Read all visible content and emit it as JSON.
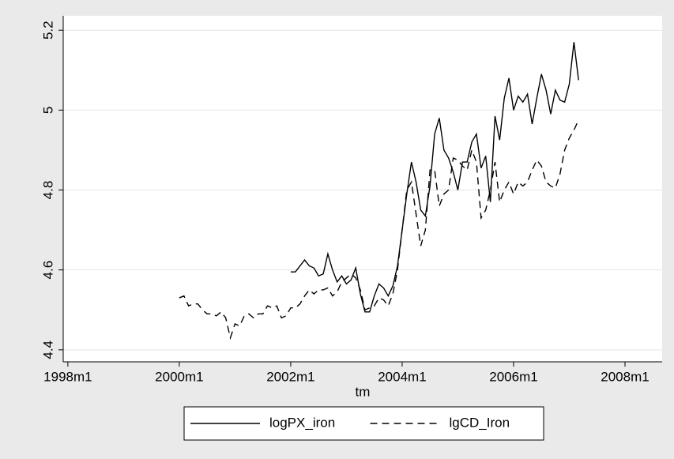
{
  "chart_data": {
    "type": "line",
    "x_label": "tm",
    "x": [
      "2000m1",
      "2000m2",
      "2000m3",
      "2000m4",
      "2000m5",
      "2000m6",
      "2000m7",
      "2000m8",
      "2000m9",
      "2000m10",
      "2000m11",
      "2000m12",
      "2001m1",
      "2001m2",
      "2001m3",
      "2001m4",
      "2001m5",
      "2001m6",
      "2001m7",
      "2001m8",
      "2001m9",
      "2001m10",
      "2001m11",
      "2001m12",
      "2002m1",
      "2002m2",
      "2002m3",
      "2002m4",
      "2002m5",
      "2002m6",
      "2002m7",
      "2002m8",
      "2002m9",
      "2002m10",
      "2002m11",
      "2002m12",
      "2003m1",
      "2003m2",
      "2003m3",
      "2003m4",
      "2003m5",
      "2003m6",
      "2003m7",
      "2003m8",
      "2003m9",
      "2003m10",
      "2003m11",
      "2003m12",
      "2004m1",
      "2004m2",
      "2004m3",
      "2004m4",
      "2004m5",
      "2004m6",
      "2004m7",
      "2004m8",
      "2004m9",
      "2004m10",
      "2004m11",
      "2004m12",
      "2005m1",
      "2005m2",
      "2005m3",
      "2005m4",
      "2005m5",
      "2005m6",
      "2005m7",
      "2005m8",
      "2005m9",
      "2005m10",
      "2005m11",
      "2005m12",
      "2006m1",
      "2006m2",
      "2006m3",
      "2006m4",
      "2006m5",
      "2006m6",
      "2006m7",
      "2006m8",
      "2006m9",
      "2006m10",
      "2006m11",
      "2006m12",
      "2007m1",
      "2007m2",
      "2007m3"
    ],
    "series": [
      {
        "name": "logPX_iron",
        "color": "#000000",
        "dash": "solid",
        "values": [
          null,
          null,
          null,
          null,
          null,
          null,
          null,
          null,
          null,
          null,
          null,
          null,
          null,
          null,
          null,
          null,
          null,
          null,
          null,
          null,
          null,
          null,
          null,
          null,
          4.595,
          4.595,
          4.61,
          4.625,
          4.61,
          4.605,
          4.585,
          4.59,
          4.64,
          4.6,
          4.57,
          4.585,
          4.565,
          4.575,
          4.605,
          4.54,
          4.495,
          4.495,
          4.535,
          4.565,
          4.555,
          4.535,
          4.56,
          4.61,
          4.7,
          4.79,
          4.87,
          4.82,
          4.75,
          4.735,
          4.81,
          4.94,
          4.98,
          4.9,
          4.88,
          4.845,
          4.8,
          4.87,
          4.87,
          4.92,
          4.94,
          4.855,
          4.885,
          4.77,
          4.985,
          4.925,
          5.03,
          5.08,
          5.0,
          5.035,
          5.02,
          5.04,
          4.965,
          5.03,
          5.09,
          5.05,
          4.99,
          5.05,
          5.025,
          5.02,
          5.065,
          5.17,
          5.075
        ]
      },
      {
        "name": "lgCD_Iron",
        "color": "#000000",
        "dash": "dashed",
        "values": [
          4.53,
          4.535,
          4.51,
          4.515,
          4.515,
          4.5,
          4.49,
          4.49,
          4.485,
          4.495,
          4.48,
          4.43,
          4.465,
          4.46,
          4.485,
          4.49,
          4.48,
          4.49,
          4.49,
          4.51,
          4.505,
          4.51,
          4.48,
          4.485,
          4.505,
          4.505,
          4.515,
          4.535,
          4.55,
          4.54,
          4.55,
          4.55,
          4.555,
          4.535,
          4.545,
          4.57,
          4.58,
          4.59,
          4.58,
          4.55,
          4.5,
          4.505,
          4.51,
          4.53,
          4.525,
          4.51,
          4.54,
          4.6,
          4.7,
          4.8,
          4.82,
          4.74,
          4.66,
          4.7,
          4.85,
          4.85,
          4.76,
          4.79,
          4.8,
          4.88,
          4.875,
          4.86,
          4.85,
          4.9,
          4.87,
          4.73,
          4.75,
          4.8,
          4.87,
          4.77,
          4.8,
          4.82,
          4.79,
          4.82,
          4.81,
          4.82,
          4.85,
          4.875,
          4.86,
          4.82,
          4.81,
          4.805,
          4.84,
          4.9,
          4.93,
          4.95,
          4.975
        ]
      }
    ],
    "xlim": [
      "1997m12",
      "2008m9"
    ],
    "xticks": [
      "1998m1",
      "2000m1",
      "2002m1",
      "2004m1",
      "2006m1",
      "2008m1"
    ],
    "ylim": [
      4.37,
      5.236
    ],
    "yticks": [
      4.4,
      4.6,
      4.8,
      5,
      5.2
    ],
    "grid": true,
    "legend": "bottom"
  }
}
